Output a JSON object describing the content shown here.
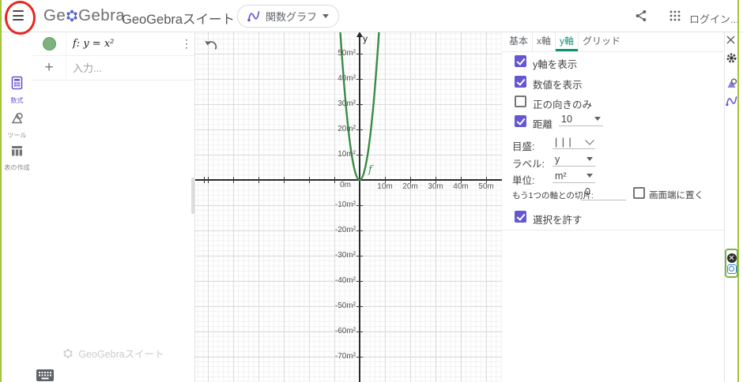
{
  "header": {
    "logo_left": "Ge",
    "logo_right": "Gebra",
    "title": "GeoGebraスイート",
    "app_switcher_label": "関数グラフ",
    "login_label": "ログイン..."
  },
  "sidebar": {
    "items": [
      {
        "label": "数式",
        "icon": "calculator-icon",
        "active": true
      },
      {
        "label": "ツール",
        "icon": "tools-icon",
        "active": false
      },
      {
        "label": "表の作成",
        "icon": "table-icon",
        "active": false
      }
    ]
  },
  "algebra": {
    "rows": [
      {
        "expression": "f: y = x²",
        "visible": true
      }
    ],
    "input_placeholder": "入力...",
    "watermark": "GeoGebraスイート"
  },
  "graph": {
    "function": "y = x²",
    "function_label": "f",
    "axis_label": "y",
    "origin_label": "0m",
    "x_unit": "m",
    "y_unit": "m²",
    "x_ticks": [
      {
        "label": "10m",
        "value": 10
      },
      {
        "label": "20m",
        "value": 20
      },
      {
        "label": "30m",
        "value": 30
      },
      {
        "label": "40m",
        "value": 40
      },
      {
        "label": "50m",
        "value": 50
      }
    ],
    "y_ticks": [
      {
        "label": "50m²",
        "value": 50
      },
      {
        "label": "40m²",
        "value": 40
      },
      {
        "label": "30m²",
        "value": 30
      },
      {
        "label": "20m²",
        "value": 20
      },
      {
        "label": "10m²",
        "value": 10
      },
      {
        "label": "-10m²",
        "value": -10
      },
      {
        "label": "-20m²",
        "value": -20
      },
      {
        "label": "-30m²",
        "value": -30
      },
      {
        "label": "-40m²",
        "value": -40
      },
      {
        "label": "-50m²",
        "value": -50
      },
      {
        "label": "-60m²",
        "value": -60
      },
      {
        "label": "-70m²",
        "value": -70
      }
    ],
    "curve_color": "#388c46"
  },
  "settings": {
    "tabs": [
      {
        "label": "基本",
        "active": false
      },
      {
        "label": "x軸",
        "active": false
      },
      {
        "label": "y軸",
        "active": true
      },
      {
        "label": "グリッド",
        "active": false
      }
    ],
    "show_axis": {
      "label": "y軸を表示",
      "checked": true
    },
    "show_numbers": {
      "label": "数値を表示",
      "checked": true
    },
    "positive_only": {
      "label": "正の向きのみ",
      "checked": false
    },
    "distance": {
      "label": "距離",
      "checked": true,
      "value": "10"
    },
    "ticks": {
      "label": "目盛:",
      "value": "| | |"
    },
    "axis_label_dd": {
      "label": "ラベル:",
      "value": "y"
    },
    "unit": {
      "label": "単位:",
      "value": "m²"
    },
    "cross": {
      "label": "もう1つの軸との切片:",
      "value": "0"
    },
    "stick_to_edge": {
      "label": "画面端に置く",
      "checked": false
    },
    "allow_selection": {
      "label": "選択を許す",
      "checked": true
    }
  },
  "rail": {
    "icons": [
      "close-icon",
      "gear-icon",
      "tools-icon",
      "function-graph-icon"
    ]
  },
  "overlay": {
    "icons": [
      "close-icon",
      "screenshot-app-icon"
    ]
  },
  "colors": {
    "accent_purple": "#6557d2",
    "accent_teal": "#0d9373",
    "curve_green": "#388c46",
    "edge_green": "#a3c53c",
    "annotation_red": "#e8261f"
  }
}
